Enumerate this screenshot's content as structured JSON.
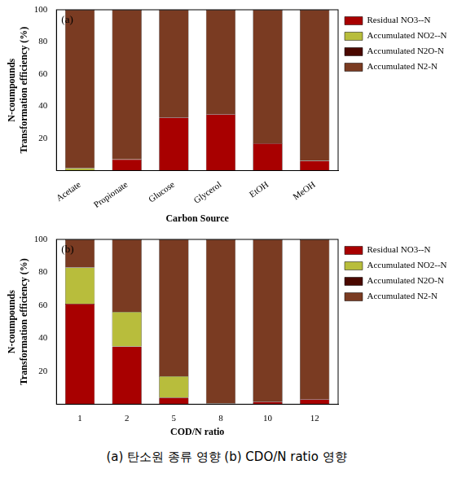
{
  "chart_data": [
    {
      "type": "bar",
      "stacked": true,
      "annotation": "(a)",
      "xlabel": "Carbon Source",
      "ylabel": [
        "N-coumpounds",
        "Transformation efficiency (%)"
      ],
      "categories": [
        "Acetate",
        "Propionate",
        "Glucose",
        "Glycerol",
        "EtOH",
        "MeOH"
      ],
      "series": [
        {
          "name": "Residual NO3--N",
          "color": "#a80000",
          "values": [
            0,
            7,
            33,
            35,
            17,
            6
          ]
        },
        {
          "name": "Accumulated NO2--N",
          "color": "#b8bd3c",
          "values": [
            1.5,
            0,
            0,
            0,
            0,
            0
          ]
        },
        {
          "name": "Accumulated N2O-N",
          "color": "#4a0800",
          "values": [
            0,
            0,
            0,
            0,
            0,
            0
          ]
        },
        {
          "name": "Accumulated N2-N",
          "color": "#7a3b22",
          "values": [
            98.5,
            93,
            67,
            65,
            83,
            94
          ]
        }
      ],
      "ylim": [
        0,
        100
      ],
      "yticks": [
        20,
        40,
        60,
        80,
        100
      ],
      "grid": false,
      "legend": "right"
    },
    {
      "type": "bar",
      "stacked": true,
      "annotation": "(b)",
      "xlabel": "COD/N ratio",
      "ylabel": [
        "N-coumpounds",
        "Transformation efficiency (%)"
      ],
      "categories": [
        "1",
        "2",
        "5",
        "8",
        "10",
        "12"
      ],
      "series": [
        {
          "name": "Residual NO3--N",
          "color": "#a80000",
          "values": [
            61,
            35,
            4,
            0.5,
            1.5,
            3
          ]
        },
        {
          "name": "Accumulated NO2--N",
          "color": "#b8bd3c",
          "values": [
            22,
            21,
            13,
            0,
            0,
            0
          ]
        },
        {
          "name": "Accumulated N2O-N",
          "color": "#4a0800",
          "values": [
            0,
            0,
            0,
            0,
            0,
            0
          ]
        },
        {
          "name": "Accumulated N2-N",
          "color": "#7a3b22",
          "values": [
            17,
            44,
            83,
            99.5,
            98.5,
            97
          ]
        }
      ],
      "ylim": [
        0,
        100
      ],
      "yticks": [
        20,
        40,
        60,
        80,
        100
      ],
      "grid": false,
      "legend": "right"
    }
  ],
  "caption": "(a) 탄소원 종류 영향  (b) CDO/N ratio 영향"
}
